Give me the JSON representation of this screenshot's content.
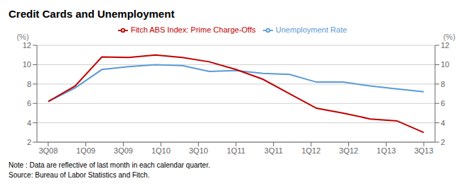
{
  "chart_data": {
    "type": "line",
    "title": "Credit Cards and Unemployment",
    "ylabel": "(%)",
    "y2label": "(%)",
    "x": [
      0.0,
      0.7142857142857143,
      1.4285714285714286,
      2.142857142857143,
      2.857142857142857,
      3.5714285714285716,
      4.285714285714286,
      5.0,
      5.714285714285714,
      6.428571428571429,
      7.142857142857143,
      7.857142857142858,
      8.571428571428571,
      9.285714285714286,
      10.0
    ],
    "xlim": [
      -0.3,
      10.3
    ],
    "xticks": [
      {
        "value": 0,
        "label": "3Q08"
      },
      {
        "value": 1,
        "label": "1Q09"
      },
      {
        "value": 2,
        "label": "3Q09"
      },
      {
        "value": 3,
        "label": "1Q10"
      },
      {
        "value": 4,
        "label": "3Q10"
      },
      {
        "value": 5,
        "label": "1Q11"
      },
      {
        "value": 6,
        "label": "3Q11"
      },
      {
        "value": 7,
        "label": "1Q12"
      },
      {
        "value": 8,
        "label": "3Q12"
      },
      {
        "value": 9,
        "label": "1Q13"
      },
      {
        "value": 10,
        "label": "3Q13"
      }
    ],
    "ylim": [
      2,
      12
    ],
    "yticks": [
      2,
      4,
      6,
      8,
      10,
      12
    ],
    "y2lim": [
      2,
      12
    ],
    "y2ticks": [
      2,
      4,
      6,
      8,
      10,
      12
    ],
    "series": [
      {
        "name": "Unemployment Rate",
        "color": "#5B9BD5",
        "values": [
          6.2,
          7.6,
          9.5,
          9.8,
          10.0,
          9.9,
          9.3,
          9.4,
          9.1,
          9.0,
          8.2,
          8.2,
          7.8,
          7.5,
          7.2
        ]
      },
      {
        "name": "Fitch ABS Index: Prime Charge-Offs",
        "color": "#C00000",
        "axis": "y2",
        "values": [
          6.2,
          7.8,
          10.8,
          10.75,
          11.0,
          10.75,
          10.3,
          9.5,
          8.5,
          7.0,
          5.5,
          5.0,
          4.4,
          4.2,
          3.0
        ]
      }
    ],
    "grid": true,
    "legend": "top",
    "annotations": [
      "Note : Data are reflective of last month in each calendar quarter.",
      "Source: Bureau of Labor Statistics and Fitch."
    ]
  }
}
